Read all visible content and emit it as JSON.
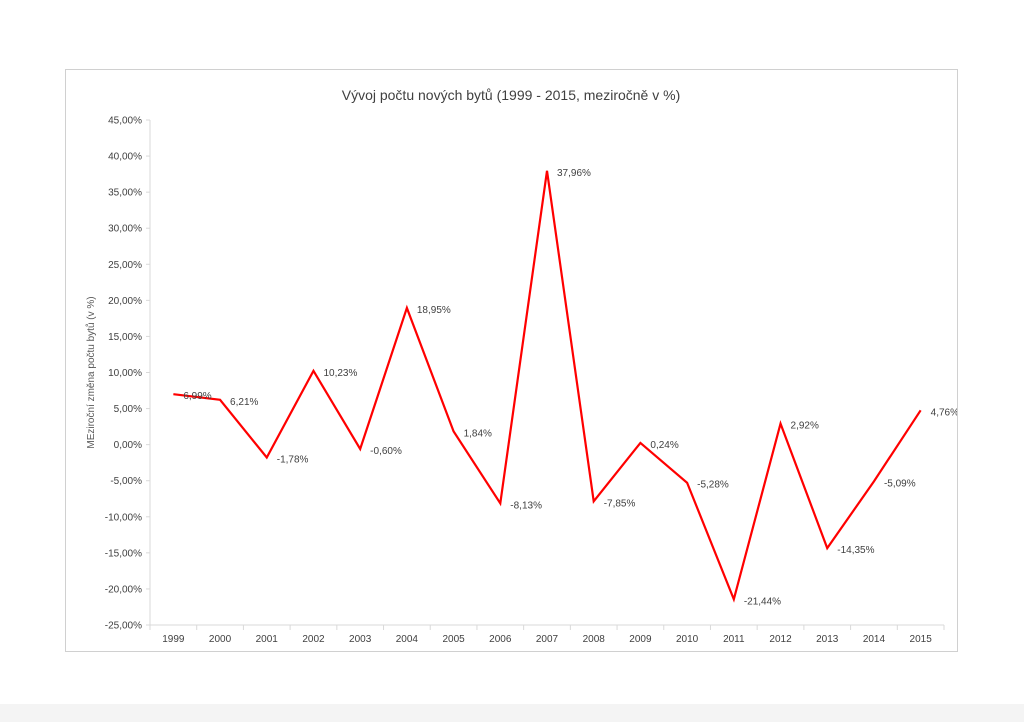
{
  "chart_data": {
    "type": "line",
    "title": "Vývoj počtu nových bytů (1999 - 2015, meziročně v %)",
    "xlabel": "",
    "ylabel": "MEziroční změna počtu bytů (v %)",
    "ylim": [
      -25,
      45
    ],
    "yticks": [
      45,
      40,
      35,
      30,
      25,
      20,
      15,
      10,
      5,
      0,
      -5,
      -10,
      -15,
      -20,
      -25
    ],
    "ytick_labels": [
      "45,00%",
      "40,00%",
      "35,00%",
      "30,00%",
      "25,00%",
      "20,00%",
      "15,00%",
      "10,00%",
      "5,00%",
      "0,00%",
      "-5,00%",
      "-10,00%",
      "-15,00%",
      "-20,00%",
      "-25,00%"
    ],
    "categories": [
      "1999",
      "2000",
      "2001",
      "2002",
      "2003",
      "2004",
      "2005",
      "2006",
      "2007",
      "2008",
      "2009",
      "2010",
      "2011",
      "2012",
      "2013",
      "2014",
      "2015"
    ],
    "series": [
      {
        "values": [
          6.99,
          6.21,
          -1.78,
          10.23,
          -0.6,
          18.95,
          1.84,
          -8.13,
          37.96,
          -7.85,
          0.24,
          -5.28,
          -21.44,
          2.92,
          -14.35,
          -5.09,
          4.76
        ],
        "labels": [
          "6,99%",
          "6,21%",
          "-1,78%",
          "10,23%",
          "-0,60%",
          "18,95%",
          "1,84%",
          "-8,13%",
          "37,96%",
          "-7,85%",
          "0,24%",
          "-5,28%",
          "-21,44%",
          "2,92%",
          "-14,35%",
          "-5,09%",
          "4,76%"
        ],
        "color": "#ff0000"
      }
    ],
    "grid": false,
    "legend": "none",
    "axis_color": "#d9d9d9",
    "text_color": "#404040"
  }
}
